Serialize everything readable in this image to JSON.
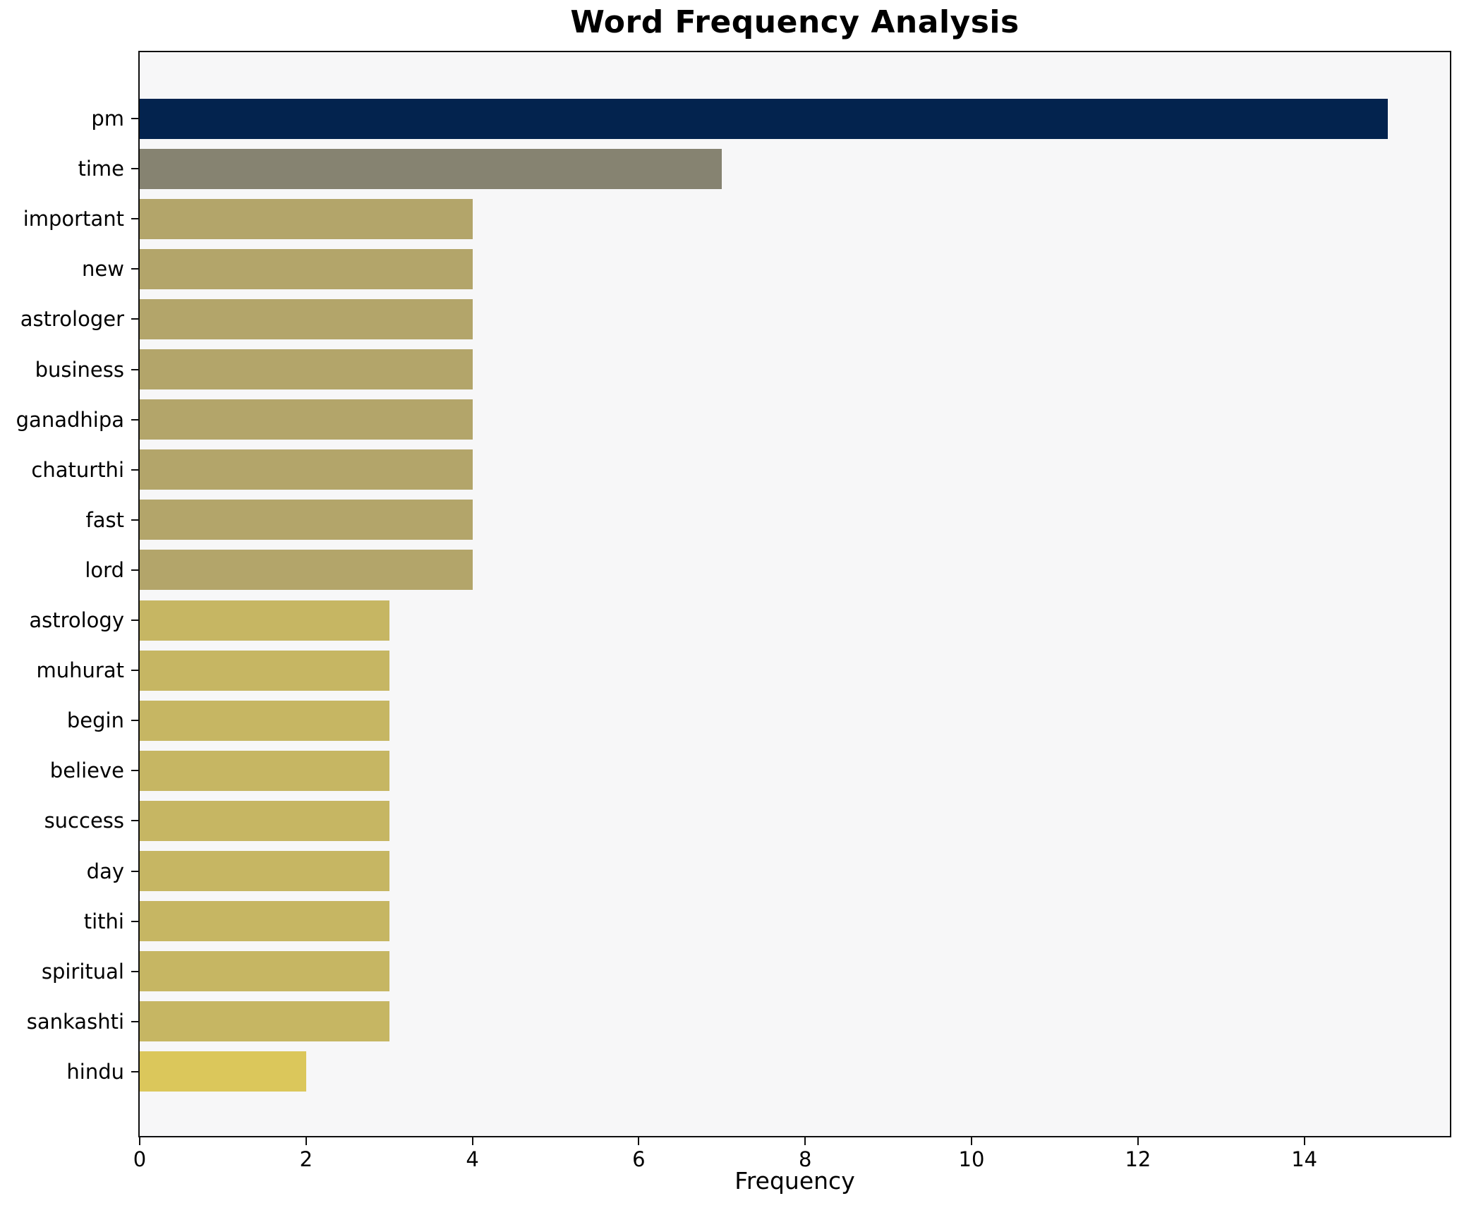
{
  "figure": {
    "background": "#ffffff",
    "plot_background": "#f7f7f8",
    "axis_color": "#0f0f0f",
    "text_color": "#000000"
  },
  "chart_data": {
    "type": "bar",
    "orientation": "horizontal",
    "title": "Word Frequency Analysis",
    "xlabel": "Frequency",
    "ylabel": "",
    "categories": [
      "pm",
      "time",
      "important",
      "new",
      "astrologer",
      "business",
      "ganadhipa",
      "chaturthi",
      "fast",
      "lord",
      "astrology",
      "muhurat",
      "begin",
      "believe",
      "success",
      "day",
      "tithi",
      "spiritual",
      "sankashti",
      "hindu"
    ],
    "values": [
      15,
      7,
      4,
      4,
      4,
      4,
      4,
      4,
      4,
      4,
      3,
      3,
      3,
      3,
      3,
      3,
      3,
      3,
      3,
      2
    ],
    "bar_colors": [
      "#03234e",
      "#868371",
      "#b3a56a",
      "#b3a56a",
      "#b3a56a",
      "#b3a56a",
      "#b3a56a",
      "#b3a56a",
      "#b3a56a",
      "#b3a56a",
      "#c6b663",
      "#c6b663",
      "#c6b663",
      "#c6b663",
      "#c6b663",
      "#c6b663",
      "#c6b663",
      "#c6b663",
      "#c6b663",
      "#dbc75b"
    ],
    "xlim": [
      0,
      15.75
    ],
    "xticks": [
      0,
      2,
      4,
      6,
      8,
      10,
      12,
      14
    ],
    "grid": false,
    "legend": null
  }
}
